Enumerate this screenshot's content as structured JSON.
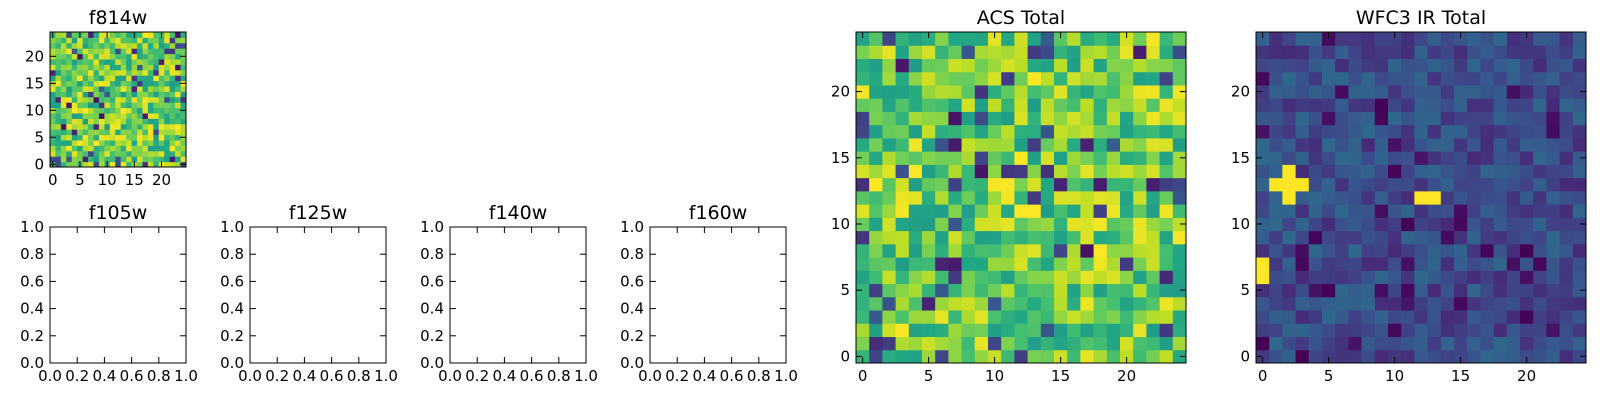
{
  "chart_data": [
    {
      "id": "f814w",
      "type": "heatmap",
      "title": "f814w",
      "xlabel": "",
      "ylabel": "",
      "xlim": [
        -0.5,
        24.5
      ],
      "ylim": [
        -0.5,
        24.5
      ],
      "xticks": [
        "0",
        "5",
        "10",
        "15",
        "20"
      ],
      "yticks": [
        "0",
        "5",
        "10",
        "15",
        "20"
      ],
      "colormap": "viridis",
      "grid": false,
      "legend": "none",
      "note": "25x25 pixel intensity map, predominantly yellow-green with scattered dark pixels"
    },
    {
      "id": "f105w",
      "type": "empty",
      "title": "f105w",
      "xlim": [
        0,
        1
      ],
      "ylim": [
        0,
        1
      ],
      "xticks": [
        "0.0",
        "0.2",
        "0.4",
        "0.6",
        "0.8",
        "1.0"
      ],
      "yticks": [
        "0.0",
        "0.2",
        "0.4",
        "0.6",
        "0.8",
        "1.0"
      ]
    },
    {
      "id": "f125w",
      "type": "empty",
      "title": "f125w",
      "xlim": [
        0,
        1
      ],
      "ylim": [
        0,
        1
      ],
      "xticks": [
        "0.0",
        "0.2",
        "0.4",
        "0.6",
        "0.8",
        "1.0"
      ],
      "yticks": [
        "0.0",
        "0.2",
        "0.4",
        "0.6",
        "0.8",
        "1.0"
      ]
    },
    {
      "id": "f140w",
      "type": "empty",
      "title": "f140w",
      "xlim": [
        0,
        1
      ],
      "ylim": [
        0,
        1
      ],
      "xticks": [
        "0.0",
        "0.2",
        "0.4",
        "0.6",
        "0.8",
        "1.0"
      ],
      "yticks": [
        "0.0",
        "0.2",
        "0.4",
        "0.6",
        "0.8",
        "1.0"
      ]
    },
    {
      "id": "f160w",
      "type": "empty",
      "title": "f160w",
      "xlim": [
        0,
        1
      ],
      "ylim": [
        0,
        1
      ],
      "xticks": [
        "0.0",
        "0.2",
        "0.4",
        "0.6",
        "0.8",
        "1.0"
      ],
      "yticks": [
        "0.0",
        "0.2",
        "0.4",
        "0.6",
        "0.8",
        "1.0"
      ]
    },
    {
      "id": "acs-total",
      "type": "heatmap",
      "title": "ACS Total",
      "xlim": [
        -0.5,
        24.5
      ],
      "ylim": [
        -0.5,
        24.5
      ],
      "xticks": [
        "0",
        "5",
        "10",
        "15",
        "20"
      ],
      "yticks": [
        "0",
        "5",
        "10",
        "15",
        "20"
      ],
      "colormap": "viridis",
      "grid": false,
      "legend": "none",
      "note": "25x25 map, mostly green-yellow with scattered dark purple pixels"
    },
    {
      "id": "wfc3-ir-total",
      "type": "heatmap",
      "title": "WFC3 IR Total",
      "xlim": [
        -0.5,
        24.5
      ],
      "ylim": [
        -0.5,
        24.5
      ],
      "xticks": [
        "0",
        "5",
        "10",
        "15",
        "20"
      ],
      "yticks": [
        "0",
        "5",
        "10",
        "15",
        "20"
      ],
      "colormap": "viridis",
      "grid": false,
      "legend": "none",
      "bright_pixels": [
        [
          1,
          13
        ],
        [
          2,
          14
        ],
        [
          2,
          13
        ],
        [
          3,
          13
        ],
        [
          2,
          12
        ],
        [
          12,
          12
        ],
        [
          13,
          12
        ],
        [
          0,
          6
        ],
        [
          0,
          7
        ]
      ],
      "note": "25x25 map, mostly dark blue-purple with a bright yellow cross near (2,13) and bright pair near (12-13,12)"
    }
  ]
}
